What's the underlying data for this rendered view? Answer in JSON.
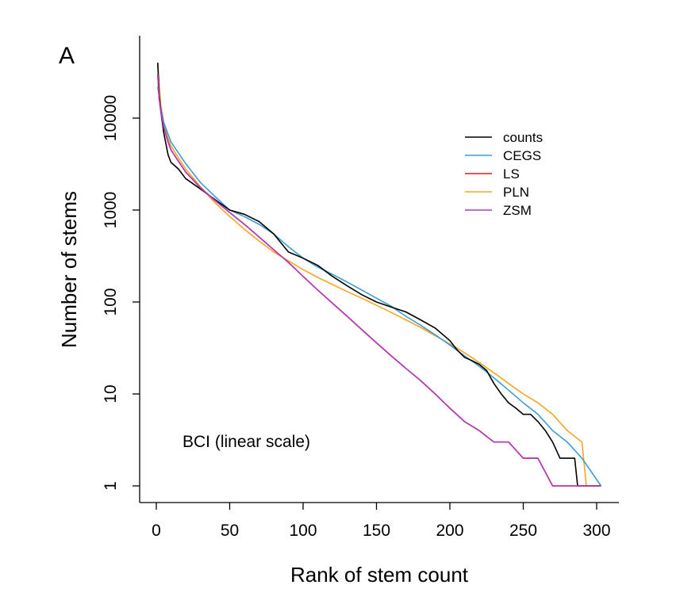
{
  "chart_data": {
    "type": "line",
    "panel_label": "A",
    "annotation": "BCI (linear scale)",
    "xlabel": "Rank of stem count",
    "ylabel": "Number of stems",
    "xlim": [
      -10,
      315
    ],
    "ylim": [
      1,
      40000
    ],
    "y_scale": "log",
    "x_ticks": [
      0,
      50,
      100,
      150,
      200,
      250,
      300
    ],
    "x_tick_labels": [
      "0",
      "50",
      "100",
      "150",
      "200",
      "250",
      "300"
    ],
    "y_ticks": [
      1,
      10,
      100,
      1000,
      10000
    ],
    "y_tick_labels": [
      "1",
      "10",
      "100",
      "1000",
      "10000"
    ],
    "grid": false,
    "legend": {
      "position": "top-right",
      "items": [
        "counts",
        "CEGS",
        "LS",
        "PLN",
        "ZSM"
      ]
    },
    "series": [
      {
        "name": "counts",
        "color": "#000000",
        "step": false,
        "x": [
          1,
          2,
          3,
          5,
          8,
          10,
          15,
          20,
          30,
          40,
          50,
          60,
          70,
          80,
          90,
          100,
          110,
          120,
          130,
          140,
          150,
          160,
          170,
          180,
          190,
          200,
          205,
          210,
          215,
          220,
          225,
          230,
          235,
          240,
          245,
          250,
          255,
          260,
          265,
          270,
          275,
          280,
          285,
          287,
          289,
          303
        ],
        "y": [
          40000,
          18000,
          12000,
          7000,
          4000,
          3300,
          2800,
          2200,
          1700,
          1300,
          1000,
          900,
          750,
          550,
          350,
          300,
          250,
          190,
          150,
          120,
          100,
          88,
          78,
          64,
          52,
          38,
          30,
          25,
          23,
          21,
          18,
          13,
          10,
          8,
          7,
          6,
          6,
          5,
          4,
          3,
          2,
          2,
          2,
          1,
          1,
          1
        ]
      },
      {
        "name": "CEGS",
        "color": "#3a9ed4",
        "step": false,
        "x": [
          1,
          3,
          5,
          10,
          20,
          30,
          40,
          50,
          60,
          70,
          80,
          90,
          100,
          110,
          120,
          130,
          140,
          150,
          160,
          170,
          180,
          190,
          200,
          210,
          220,
          230,
          240,
          250,
          260,
          270,
          280,
          290,
          303
        ],
        "y": [
          22000,
          13000,
          9000,
          5500,
          3200,
          2000,
          1400,
          1000,
          850,
          700,
          550,
          400,
          300,
          240,
          200,
          165,
          135,
          110,
          90,
          70,
          56,
          44,
          34,
          26,
          20,
          15,
          11,
          8,
          6,
          4,
          3,
          2,
          1
        ]
      },
      {
        "name": "LS",
        "color": "#e31a1c",
        "step": false,
        "x": [
          1,
          2,
          3,
          5,
          8,
          10,
          15,
          20,
          30,
          40,
          50,
          60,
          70,
          80,
          90,
          100,
          110,
          120,
          130,
          140,
          150,
          160,
          170,
          180,
          190,
          200,
          210,
          220,
          230,
          240,
          250,
          260,
          270,
          303
        ],
        "y": [
          30000,
          16000,
          12000,
          8000,
          5500,
          4500,
          3400,
          2600,
          1750,
          1270,
          940,
          700,
          510,
          370,
          270,
          190,
          135,
          97,
          70,
          50,
          36,
          26,
          19,
          14,
          10,
          7,
          5,
          4,
          3,
          3,
          2,
          2,
          1,
          1
        ]
      },
      {
        "name": "PLN",
        "color": "#f5a623",
        "step": false,
        "x": [
          1,
          2,
          3,
          5,
          8,
          10,
          15,
          20,
          30,
          40,
          50,
          60,
          70,
          80,
          90,
          100,
          110,
          120,
          130,
          140,
          150,
          160,
          170,
          180,
          190,
          200,
          210,
          220,
          230,
          240,
          250,
          260,
          270,
          280,
          290,
          293,
          303
        ],
        "y": [
          40000,
          22000,
          14000,
          9000,
          6000,
          5000,
          3700,
          2800,
          1800,
          1200,
          850,
          620,
          460,
          350,
          280,
          225,
          185,
          155,
          130,
          110,
          92,
          77,
          64,
          53,
          43,
          35,
          28,
          22,
          17,
          13,
          10,
          8,
          6,
          4,
          3,
          1,
          1
        ]
      },
      {
        "name": "ZSM",
        "color": "#b03ac0",
        "step": false,
        "x": [
          1,
          2,
          3,
          5,
          8,
          10,
          15,
          20,
          30,
          40,
          50,
          60,
          70,
          80,
          90,
          100,
          110,
          120,
          130,
          140,
          150,
          160,
          170,
          180,
          190,
          200,
          210,
          220,
          230,
          240,
          250,
          260,
          270,
          303
        ],
        "y": [
          30000,
          16000,
          12000,
          8000,
          5500,
          4500,
          3400,
          2600,
          1750,
          1270,
          940,
          700,
          510,
          370,
          270,
          190,
          135,
          97,
          70,
          50,
          36,
          26,
          19,
          14,
          10,
          7,
          5,
          4,
          3,
          3,
          2,
          2,
          1,
          1
        ]
      }
    ]
  }
}
